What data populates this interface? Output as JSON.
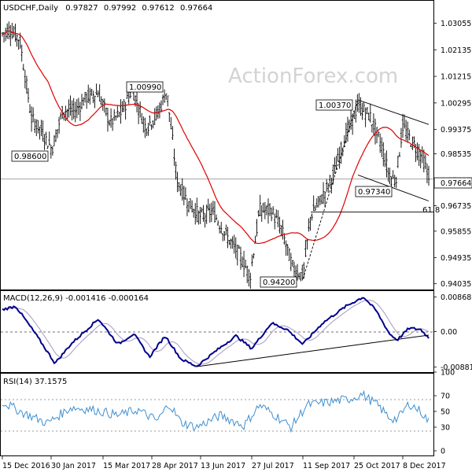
{
  "chart_data": [
    {
      "type": "candlestick",
      "title": "USDCHF,Daily",
      "ohlc_readout": [
        "0.97827",
        "0.97992",
        "0.97612",
        "0.97664"
      ],
      "watermark": "ActionForex.com",
      "ylim": [
        0.9389,
        1.0375
      ],
      "y_ticks": [
        "1.03055",
        "1.02135",
        "1.01215",
        "1.00295",
        "0.99375",
        "0.98535",
        "0.97615",
        "0.96735",
        "0.95855",
        "0.94935",
        "0.94035"
      ],
      "x_ticks": [
        "15 Dec 2016",
        "30 Jan 2017",
        "15 Mar 2017",
        "28 Apr 2017",
        "13 Jun 2017",
        "27 Jul 2017",
        "11 Sep 2017",
        "25 Oct 2017",
        "8 Dec 2017"
      ],
      "last_price": "0.97664",
      "annotations": [
        "0.98600",
        "1.00990",
        "1.00370",
        "0.97340",
        "0.94200",
        "61.8"
      ],
      "series": [
        {
          "name": "",
          "type": "moving-average",
          "color": "#e00000"
        }
      ]
    },
    {
      "type": "line",
      "title": "MACD(12,26,9) -0.001416 -0.000164",
      "y_ticks": [
        "0.00868",
        "0.00",
        "-0.00881"
      ],
      "ylim": [
        -0.0092,
        0.0092
      ],
      "series": [
        {
          "name": "MACD",
          "color": "#00008b"
        },
        {
          "name": "Signal",
          "color": "#b0a0c8"
        }
      ]
    },
    {
      "type": "line",
      "title": "RSI(14) 37.1575",
      "y_ticks": [
        "100",
        "70",
        "50",
        "30",
        "0"
      ],
      "ylim": [
        0,
        100
      ],
      "series": [
        {
          "name": "RSI",
          "color": "#3f8fd0"
        }
      ]
    }
  ],
  "colors": {
    "bars": "#000000",
    "ma": "#e00000",
    "macd": "#00008b",
    "signal": "#b0a0c8",
    "rsi": "#3f8fd0"
  }
}
